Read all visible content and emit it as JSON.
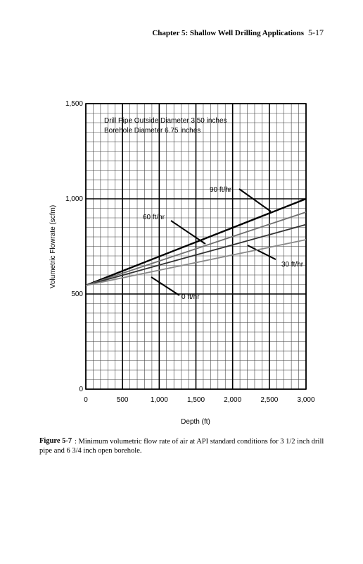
{
  "header": {
    "title": "Chapter 5: Shallow Well Drilling Applications",
    "page": "5-17"
  },
  "chart_data": {
    "type": "line",
    "x_label": "Depth (ft)",
    "y_label": "Volumetric Flowrate (scfm)",
    "annotations": [
      "Drill Pipe Outside Diameter 3.50 inches",
      "Borehole Diameter 6.75 inches"
    ],
    "x": [
      0,
      1000,
      2000,
      3000
    ],
    "series": [
      {
        "name": "90 ft/hr",
        "color": "#000000",
        "values": [
          545,
          697,
          848,
          1000
        ]
      },
      {
        "name": "60 ft/hr",
        "color": "#707070",
        "values": [
          545,
          673,
          802,
          930
        ]
      },
      {
        "name": "30 ft/hr",
        "color": "#333333",
        "values": [
          545,
          652,
          758,
          865
        ]
      },
      {
        "name": "0 ft/hr",
        "color": "#8a8a8a",
        "values": [
          545,
          625,
          705,
          785
        ]
      }
    ],
    "xlim": [
      0,
      3000
    ],
    "ylim": [
      0,
      1500
    ],
    "xticks": [
      0,
      500,
      {
        "value": 1000,
        "label": "1,000"
      },
      {
        "value": 1500,
        "label": "1,500"
      },
      {
        "value": 2000,
        "label": "2,000"
      },
      {
        "value": 2500,
        "label": "2,500"
      },
      {
        "value": 3000,
        "label": "3,000"
      }
    ],
    "yticks": [
      0,
      500,
      {
        "value": 1000,
        "label": "1,000"
      },
      {
        "value": 1500,
        "label": "1,500"
      }
    ],
    "grid": true
  },
  "caption": {
    "label": "Figure 5-7",
    "text": ": Minimum volumetric flow rate of air at API standard conditions for 3 1/2 inch drill pipe and 6 3/4 inch open borehole."
  }
}
